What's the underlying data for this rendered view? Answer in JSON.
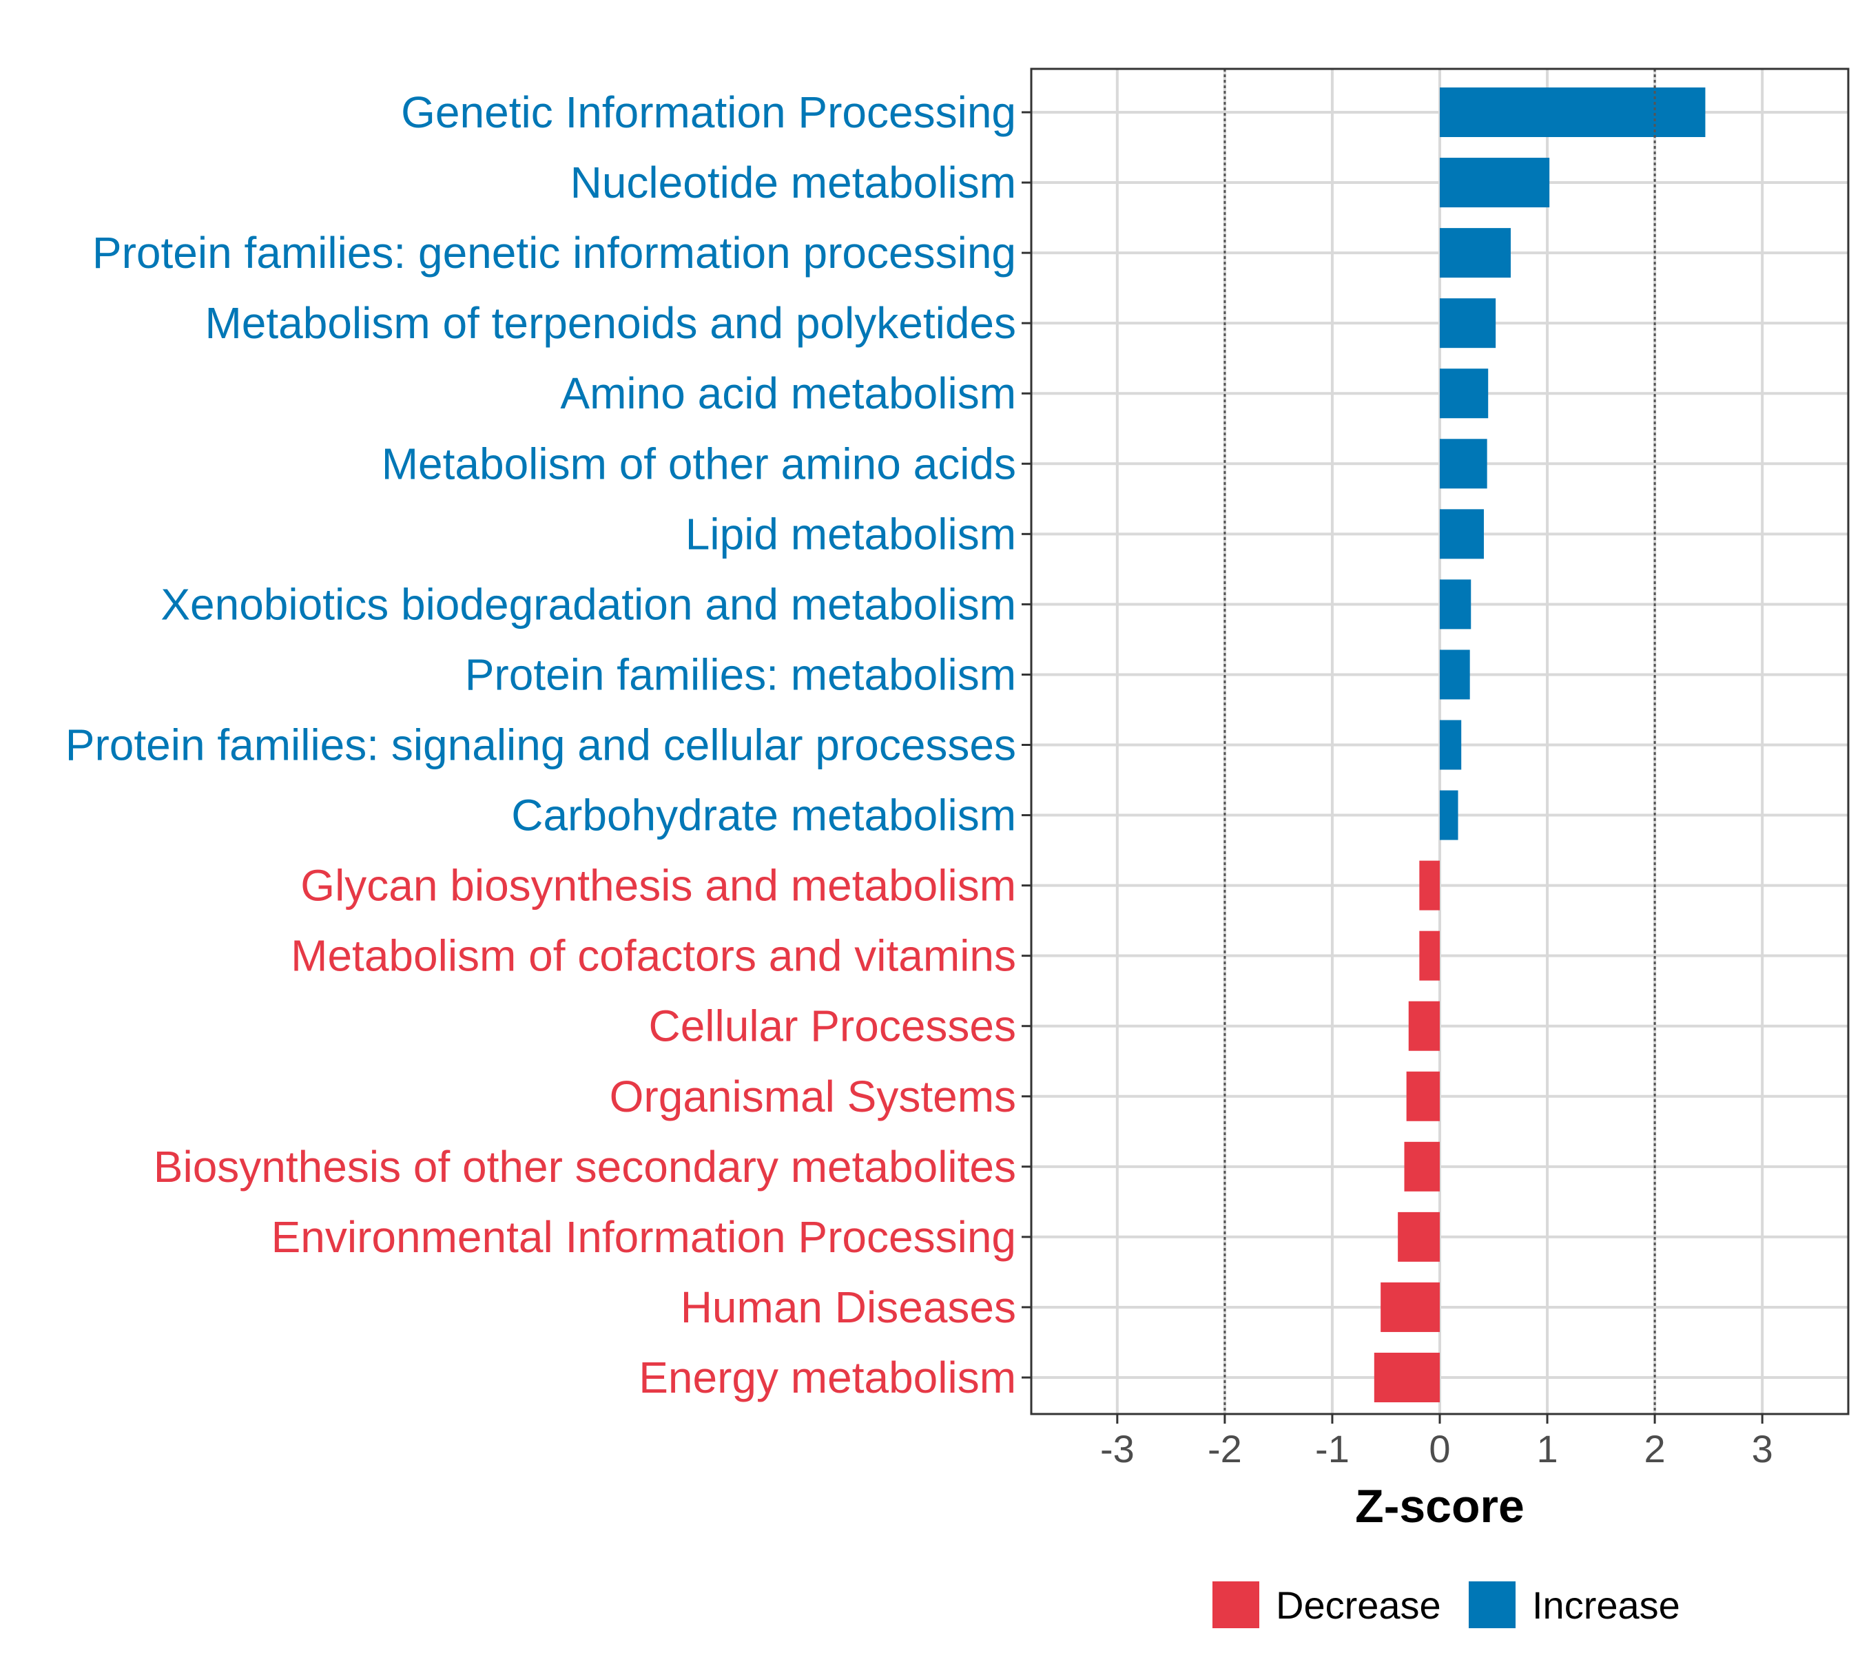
{
  "chart_data": {
    "type": "bar",
    "orientation": "horizontal",
    "title": "",
    "xlabel": "Z-score",
    "ylabel": "",
    "xlim": [
      -3.8,
      3.8
    ],
    "xticks": [
      "-3",
      "-2",
      "-1",
      "0",
      "1",
      "2",
      "3"
    ],
    "xtick_values": [
      -3,
      -2,
      -1,
      0,
      1,
      2,
      3
    ],
    "threshold_lines": [
      -2,
      2
    ],
    "grid": true,
    "colors": {
      "Decrease": "#e63946",
      "Increase": "#0077b6"
    },
    "categories": [
      "Genetic Information Processing",
      "Nucleotide metabolism",
      "Protein families: genetic information processing",
      "Metabolism of terpenoids and polyketides",
      "Amino acid metabolism",
      "Metabolism of other amino acids",
      "Lipid metabolism",
      "Xenobiotics biodegradation and metabolism",
      "Protein families: metabolism",
      "Protein families: signaling and cellular processes",
      "Carbohydrate metabolism",
      "Glycan biosynthesis and metabolism",
      "Metabolism of cofactors and vitamins",
      "Cellular Processes",
      "Organismal Systems",
      "Biosynthesis of other secondary metabolites",
      "Environmental Information Processing",
      "Human Diseases",
      "Energy metabolism"
    ],
    "values": [
      2.47,
      1.02,
      0.66,
      0.52,
      0.45,
      0.44,
      0.41,
      0.29,
      0.28,
      0.2,
      0.17,
      -0.19,
      -0.19,
      -0.29,
      -0.31,
      -0.33,
      -0.39,
      -0.55,
      -0.61
    ],
    "groups": [
      "Increase",
      "Increase",
      "Increase",
      "Increase",
      "Increase",
      "Increase",
      "Increase",
      "Increase",
      "Increase",
      "Increase",
      "Increase",
      "Decrease",
      "Decrease",
      "Decrease",
      "Decrease",
      "Decrease",
      "Decrease",
      "Decrease",
      "Decrease"
    ],
    "legend": {
      "position": "bottom",
      "items": [
        {
          "label": "Decrease",
          "color": "#e63946"
        },
        {
          "label": "Increase",
          "color": "#0077b6"
        }
      ]
    }
  }
}
